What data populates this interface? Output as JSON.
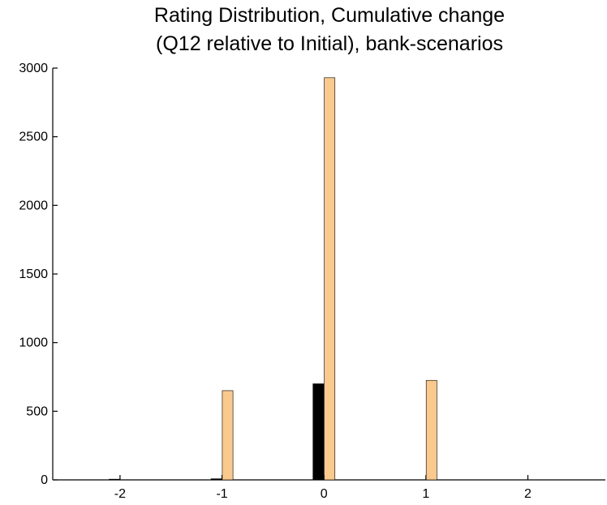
{
  "chart_data": {
    "type": "bar",
    "title": [
      "Rating Distribution, Cumulative change",
      "(Q12 relative to Initial), bank-scenarios"
    ],
    "x": [
      -2,
      -1,
      0,
      1,
      2
    ],
    "series": [
      {
        "color": "#000000",
        "values": [
          5,
          8,
          700,
          0,
          0
        ]
      },
      {
        "color": "#f9c98d",
        "values": [
          0,
          650,
          2930,
          725,
          0
        ]
      }
    ],
    "xlim": [
      -2.66,
      2.76
    ],
    "xticks": [
      -2,
      -1,
      0,
      1,
      2
    ],
    "ylim": [
      0,
      3000
    ],
    "yticks": [
      0,
      500,
      1000,
      1500,
      2000,
      2500,
      3000
    ]
  }
}
